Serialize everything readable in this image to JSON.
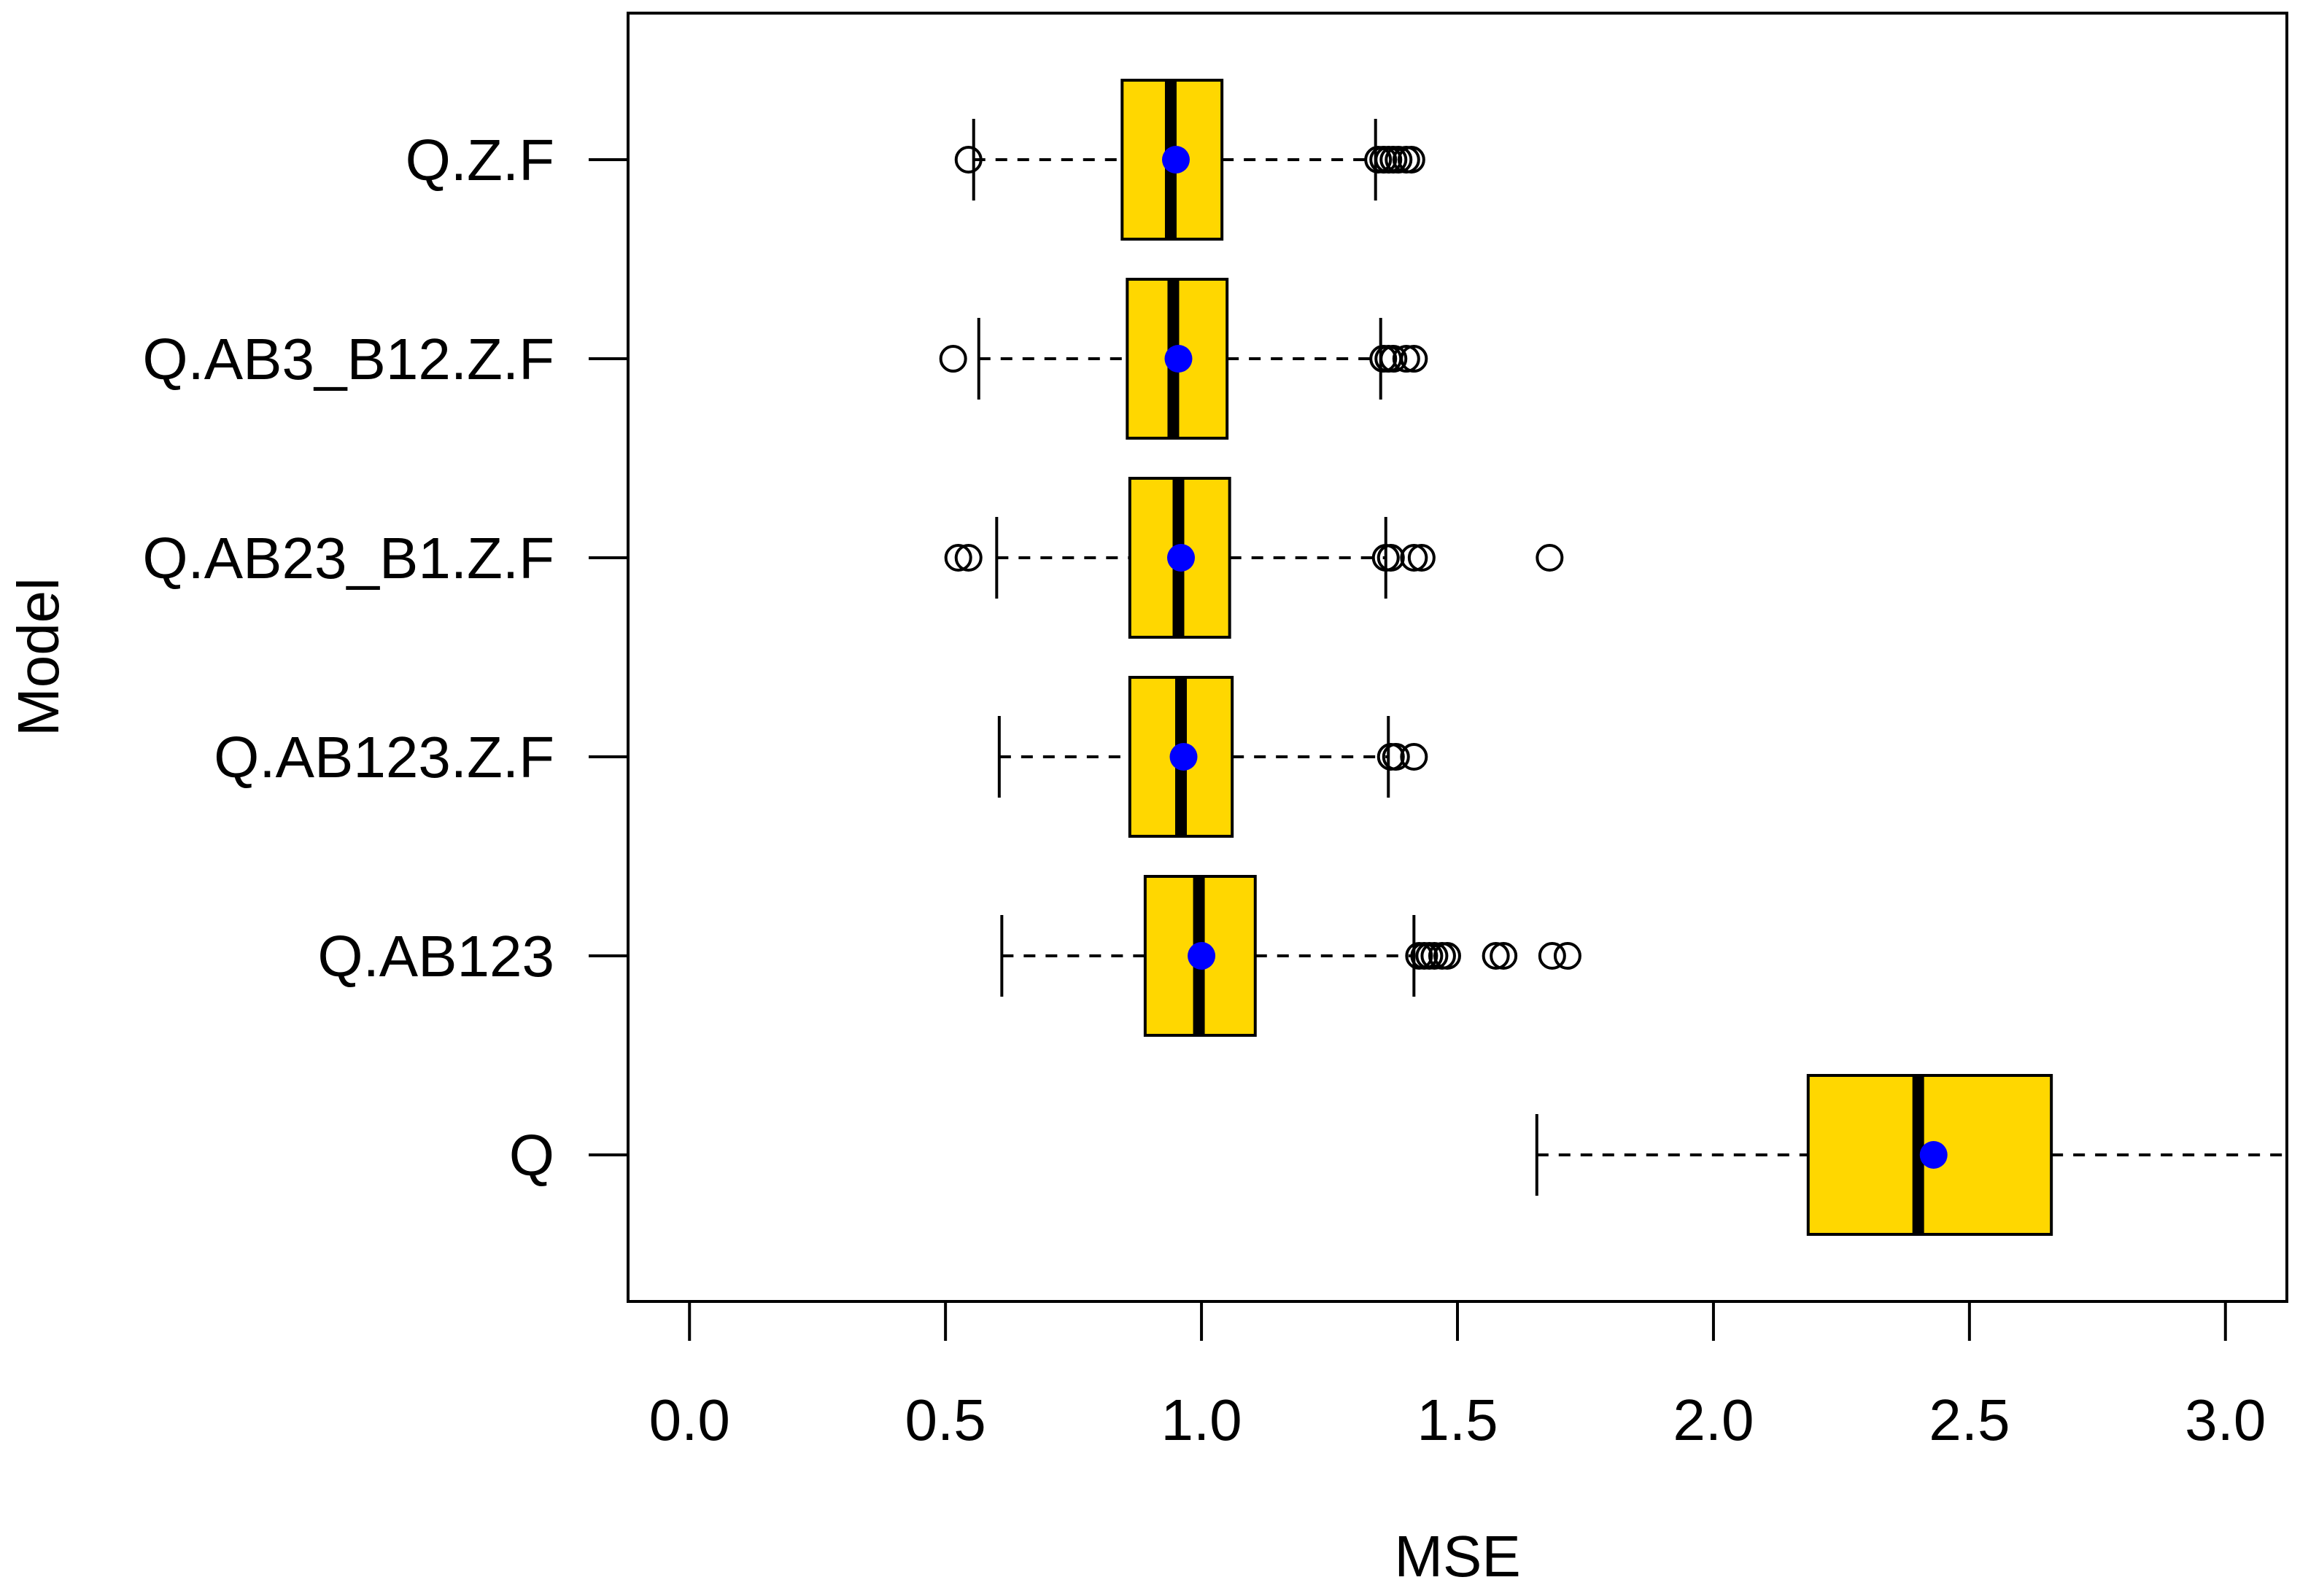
{
  "chart_data": {
    "type": "boxplot",
    "orientation": "horizontal",
    "xlabel": "MSE",
    "ylabel": "Model",
    "xlim": [
      -0.12,
      3.12
    ],
    "xticks": [
      0.0,
      0.5,
      1.0,
      1.5,
      2.0,
      2.5,
      3.0
    ],
    "xtick_labels": [
      "0.0",
      "0.5",
      "1.0",
      "1.5",
      "2.0",
      "2.5",
      "3.0"
    ],
    "colors": {
      "box_fill": "#FFD700",
      "mean_point": "#0000FF",
      "line": "#000000"
    },
    "series": [
      {
        "label": "Q.Z.F",
        "whisker_low": 0.555,
        "q1": 0.845,
        "median": 0.94,
        "q3": 1.04,
        "whisker_high": 1.34,
        "mean": 0.95,
        "outliers": [
          0.545,
          1.345,
          1.355,
          1.365,
          1.375,
          1.385,
          1.4,
          1.41
        ]
      },
      {
        "label": "Q.AB3_B12.Z.F",
        "whisker_low": 0.565,
        "q1": 0.855,
        "median": 0.945,
        "q3": 1.05,
        "whisker_high": 1.35,
        "mean": 0.955,
        "outliers": [
          0.515,
          1.355,
          1.365,
          1.375,
          1.4,
          1.415
        ]
      },
      {
        "label": "Q.AB23_B1.Z.F",
        "whisker_low": 0.6,
        "q1": 0.86,
        "median": 0.955,
        "q3": 1.055,
        "whisker_high": 1.36,
        "mean": 0.96,
        "outliers": [
          0.525,
          0.545,
          1.36,
          1.37,
          1.415,
          1.43,
          1.68
        ]
      },
      {
        "label": "Q.AB123.Z.F",
        "whisker_low": 0.605,
        "q1": 0.86,
        "median": 0.96,
        "q3": 1.06,
        "whisker_high": 1.365,
        "mean": 0.965,
        "outliers": [
          1.37,
          1.38,
          1.415
        ]
      },
      {
        "label": "Q.AB123",
        "whisker_low": 0.61,
        "q1": 0.89,
        "median": 0.995,
        "q3": 1.105,
        "whisker_high": 1.415,
        "mean": 1.0,
        "outliers": [
          1.425,
          1.435,
          1.445,
          1.455,
          1.47,
          1.48,
          1.575,
          1.59,
          1.685,
          1.715
        ]
      },
      {
        "label": "Q",
        "whisker_low": 1.655,
        "q1": 2.185,
        "median": 2.4,
        "q3": 2.66,
        "whisker_high": 3.12,
        "mean": 2.43,
        "outliers": []
      }
    ]
  }
}
